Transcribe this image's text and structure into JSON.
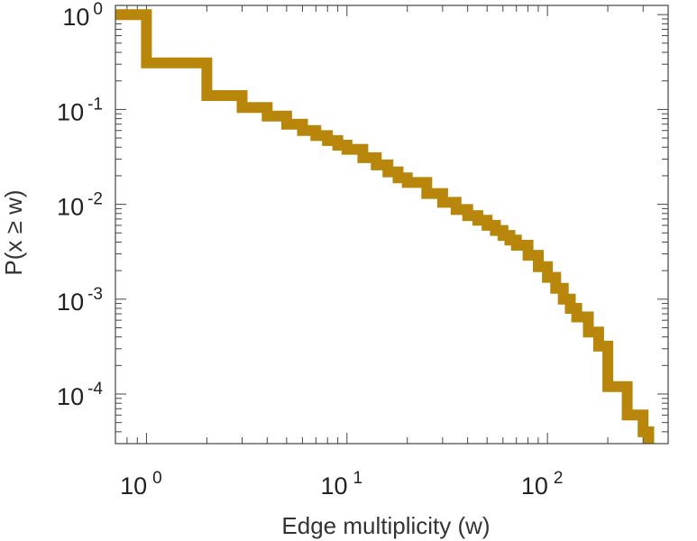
{
  "chart_data": {
    "type": "line",
    "step": true,
    "xscale": "log",
    "yscale": "log",
    "xlabel": "Edge multiplicity (w)",
    "ylabel": "P(x ≥ w)",
    "xlim": [
      0.7,
      400
    ],
    "ylim": [
      3e-05,
      1.25
    ],
    "grid": false,
    "series_color": "#B8860B",
    "x_ticks": [
      {
        "value": 1,
        "base": "10",
        "exp": "0"
      },
      {
        "value": 10,
        "base": "10",
        "exp": "1"
      },
      {
        "value": 100,
        "base": "10",
        "exp": "2"
      }
    ],
    "y_ticks": [
      {
        "value": 1,
        "base": "10",
        "exp": "0"
      },
      {
        "value": 0.1,
        "base": "10",
        "exp": "-1"
      },
      {
        "value": 0.01,
        "base": "10",
        "exp": "-2"
      },
      {
        "value": 0.001,
        "base": "10",
        "exp": "-3"
      },
      {
        "value": 0.0001,
        "base": "10",
        "exp": "-4"
      }
    ],
    "series": [
      {
        "x": [
          0.7,
          1,
          2,
          3,
          4,
          5,
          6,
          7,
          8,
          9,
          10,
          12,
          14,
          16,
          18,
          20,
          25,
          30,
          35,
          40,
          45,
          50,
          55,
          60,
          65,
          70,
          80,
          90,
          100,
          110,
          120,
          130,
          140,
          160,
          180,
          200,
          250,
          300,
          320
        ],
        "y": [
          1,
          0.31,
          0.14,
          0.105,
          0.085,
          0.07,
          0.06,
          0.053,
          0.047,
          0.042,
          0.038,
          0.031,
          0.026,
          0.022,
          0.019,
          0.017,
          0.013,
          0.0105,
          0.0088,
          0.0076,
          0.0068,
          0.006,
          0.0053,
          0.0047,
          0.0042,
          0.0037,
          0.0029,
          0.0022,
          0.0017,
          0.0013,
          0.001,
          0.0008,
          0.00065,
          0.00045,
          0.00032,
          0.00012,
          6e-05,
          4e-05,
          3e-05
        ]
      }
    ]
  }
}
